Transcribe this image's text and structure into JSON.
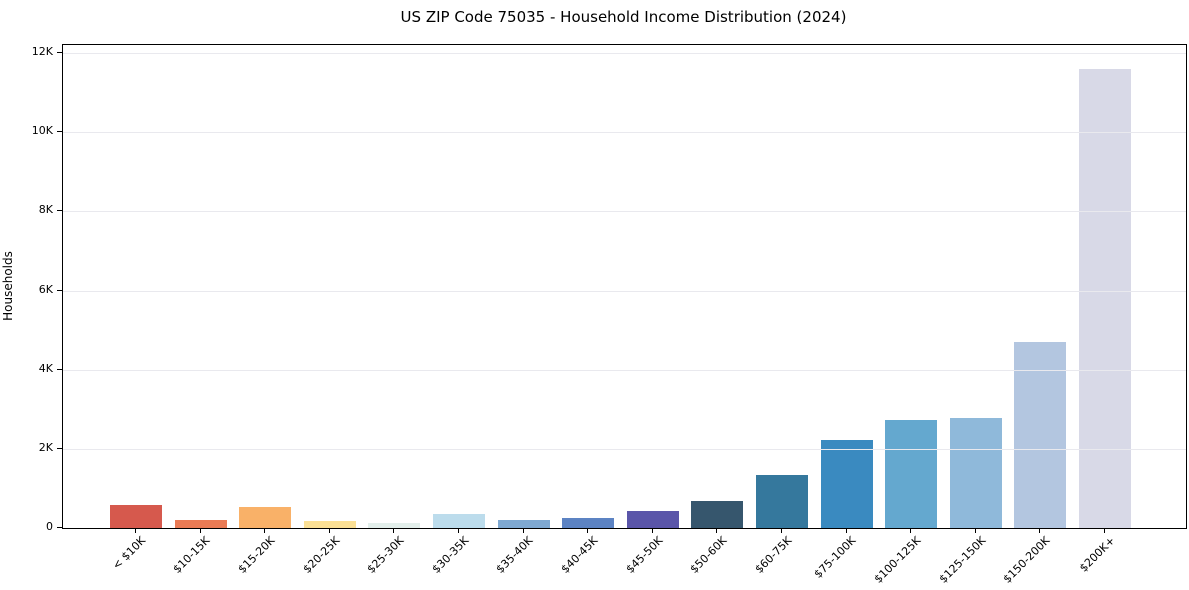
{
  "page": {
    "title": "US ZIP Code 75035 - Household Income Distribution (2024)"
  },
  "chart_data": {
    "type": "bar",
    "title": "US ZIP Code 75035 - Household Income Distribution (2024)",
    "xlabel": "",
    "ylabel": "Households",
    "categories": [
      "< $10K",
      "$10-15K",
      "$15-20K",
      "$20-25K",
      "$25-30K",
      "$30-35K",
      "$35-40K",
      "$40-45K",
      "$45-50K",
      "$50-60K",
      "$60-75K",
      "$75-100K",
      "$100-125K",
      "$125-150K",
      "$150-200K",
      "$200K+"
    ],
    "values": [
      590,
      190,
      520,
      185,
      130,
      345,
      200,
      250,
      420,
      680,
      1350,
      2230,
      2730,
      2770,
      4700,
      11600
    ],
    "bar_colors": [
      "#d6594d",
      "#ea7b55",
      "#f9b168",
      "#fbe095",
      "#e3efeb",
      "#bcdcec",
      "#7fa9d2",
      "#5c83c3",
      "#5a55a9",
      "#36566d",
      "#35789d",
      "#3a8ac0",
      "#64a8cf",
      "#8fb9da",
      "#b3c6e0",
      "#d8d9e7"
    ],
    "ylim": [
      0,
      12200
    ],
    "ytick_values": [
      0,
      2000,
      4000,
      6000,
      8000,
      10000,
      12000
    ],
    "ytick_labels": [
      "0",
      "2K",
      "4K",
      "6K",
      "8K",
      "10K",
      "12K"
    ],
    "grid": "horizontal",
    "legend": "none"
  },
  "colors": {
    "background": "#ffffff",
    "spine": "#000000",
    "grid": "#e9e9ee",
    "text": "#000000"
  }
}
